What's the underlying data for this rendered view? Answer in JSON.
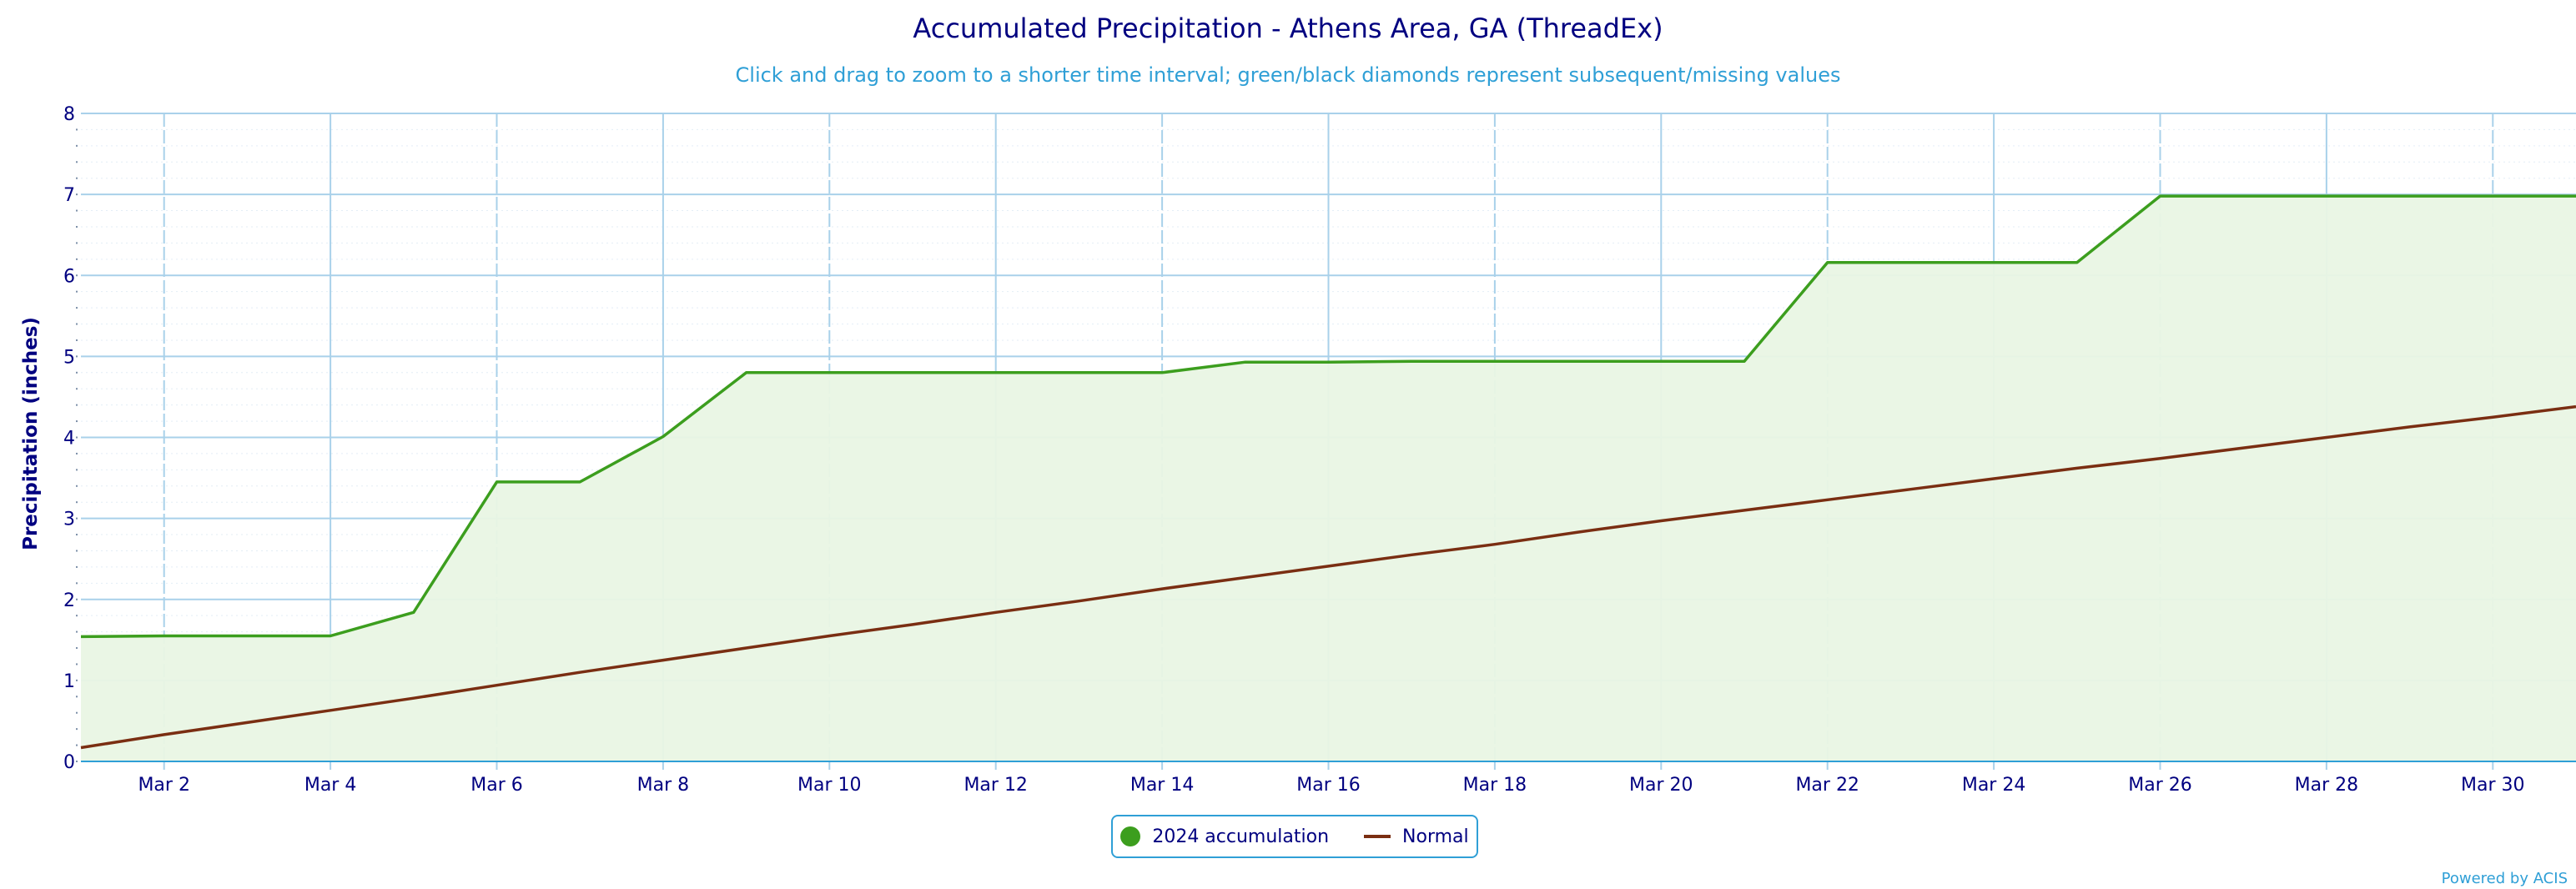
{
  "colors": {
    "accumulation": "#3c9e1e",
    "accumulation_fill": "#e9f5e4",
    "normal": "#7a2e12",
    "text": "#000080",
    "subtitle": "#2f9fd6",
    "grid": "#a9d1ea"
  },
  "chart_data": {
    "type": "area",
    "title": "Accumulated Precipitation - Athens Area, GA (ThreadEx)",
    "subtitle": "Click and drag to zoom to a shorter time interval; green/black diamonds represent subsequent/missing values",
    "xlabel": "",
    "ylabel": "Precipitation (inches)",
    "xlim": [
      1,
      31
    ],
    "ylim": [
      0,
      8
    ],
    "yticks": [
      "0",
      "1",
      "2",
      "3",
      "4",
      "5",
      "6",
      "7",
      "8"
    ],
    "xtick_values": [
      2,
      4,
      6,
      8,
      10,
      12,
      14,
      16,
      18,
      20,
      22,
      24,
      26,
      28,
      30
    ],
    "xtick_labels": [
      "Mar 2",
      "Mar 4",
      "Mar 6",
      "Mar 8",
      "Mar 10",
      "Mar 12",
      "Mar 14",
      "Mar 16",
      "Mar 18",
      "Mar 20",
      "Mar 22",
      "Mar 24",
      "Mar 26",
      "Mar 28",
      "Mar 30"
    ],
    "grid": true,
    "legend_position": "bottom-center",
    "x": [
      1,
      2,
      3,
      4,
      5,
      6,
      7,
      8,
      9,
      10,
      11,
      12,
      13,
      14,
      15,
      16,
      17,
      18,
      19,
      20,
      21,
      22,
      23,
      24,
      25,
      26,
      27,
      28,
      29,
      30,
      31
    ],
    "series": [
      {
        "name": "2024 accumulation",
        "values": [
          1.54,
          1.55,
          1.55,
          1.55,
          1.84,
          3.45,
          3.45,
          4.01,
          4.8,
          4.8,
          4.8,
          4.8,
          4.8,
          4.8,
          4.93,
          4.93,
          4.94,
          4.94,
          4.94,
          4.94,
          4.94,
          6.16,
          6.16,
          6.16,
          6.16,
          6.98,
          6.98,
          6.98,
          6.98,
          6.98,
          6.98
        ]
      },
      {
        "name": "Normal",
        "values": [
          0.17,
          0.33,
          0.48,
          0.63,
          0.78,
          0.94,
          1.1,
          1.25,
          1.4,
          1.55,
          1.69,
          1.84,
          1.98,
          2.13,
          2.27,
          2.41,
          2.55,
          2.68,
          2.83,
          2.97,
          3.1,
          3.23,
          3.36,
          3.49,
          3.62,
          3.74,
          3.87,
          4.0,
          4.13,
          4.25,
          4.38
        ]
      }
    ]
  },
  "legend": {
    "accumulation_label": "2024 accumulation",
    "normal_label": "Normal"
  },
  "credit": "Powered by ACIS"
}
